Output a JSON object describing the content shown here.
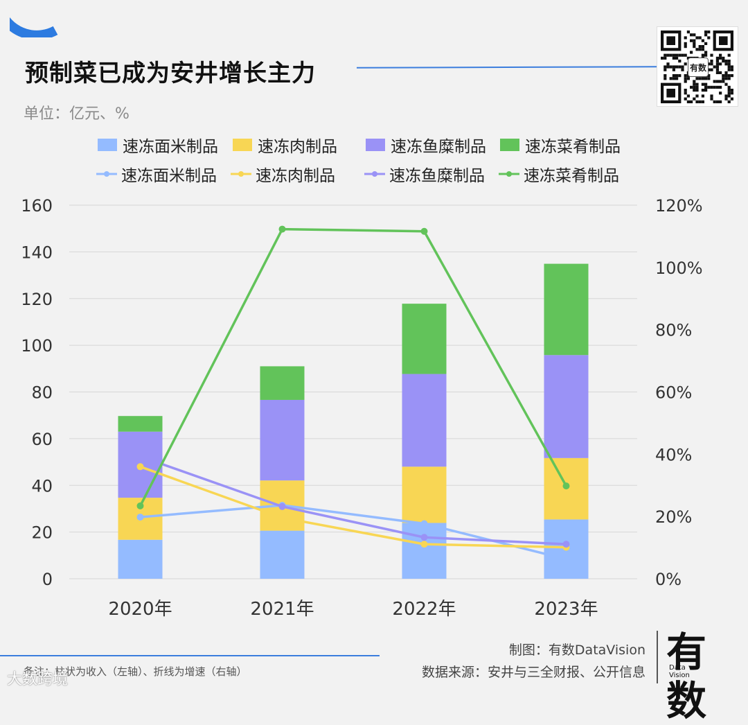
{
  "title": "预制菜已成为安井增长主力",
  "unit_label": "单位：亿元、%",
  "legend": {
    "bars": [
      "速冻面米制品",
      "速冻肉制品",
      "速冻鱼糜制品",
      "速冻菜肴制品"
    ],
    "lines": [
      "速冻面米制品",
      "速冻肉制品",
      "速冻鱼糜制品",
      "速冻菜肴制品"
    ]
  },
  "colors": {
    "mianmi": "#94bbff",
    "rou": "#f8d654",
    "yumi": "#9a92f6",
    "caiyao": "#62c35a",
    "accent": "#3b7ddd"
  },
  "chart_data": {
    "type": "bar",
    "categories": [
      "2020年",
      "2021年",
      "2022年",
      "2023年"
    ],
    "series": [
      {
        "name": "速冻面米制品",
        "type": "bar",
        "axis": "left",
        "values": [
          16.7,
          20.6,
          23.9,
          25.4
        ]
      },
      {
        "name": "速冻肉制品",
        "type": "bar",
        "axis": "left",
        "values": [
          18.0,
          21.5,
          24.1,
          26.3
        ]
      },
      {
        "name": "速冻鱼糜制品",
        "type": "bar",
        "axis": "left",
        "values": [
          28.3,
          34.5,
          39.7,
          44.1
        ]
      },
      {
        "name": "速冻菜肴制品",
        "type": "bar",
        "axis": "left",
        "values": [
          6.7,
          14.4,
          30.1,
          39.1
        ]
      },
      {
        "name": "速冻面米制品",
        "type": "line",
        "axis": "right",
        "values": [
          19.8,
          23.6,
          17.7,
          6.3
        ]
      },
      {
        "name": "速冻肉制品",
        "type": "line",
        "axis": "right",
        "values": [
          36.0,
          19.6,
          11.1,
          10.1
        ]
      },
      {
        "name": "速冻鱼糜制品",
        "type": "line",
        "axis": "right",
        "values": [
          39.3,
          23.2,
          13.3,
          11.1
        ]
      },
      {
        "name": "速冻菜肴制品",
        "type": "line",
        "axis": "right",
        "values": [
          23.4,
          112.3,
          111.6,
          29.8
        ]
      }
    ],
    "y_left": {
      "min": 0,
      "max": 160,
      "ticks": [
        "0",
        "20",
        "40",
        "60",
        "80",
        "100",
        "120",
        "140",
        "160"
      ]
    },
    "y_right": {
      "min": 0,
      "max": 120,
      "ticks": [
        "0%",
        "20%",
        "40%",
        "60%",
        "80%",
        "100%",
        "120%"
      ]
    },
    "grid": true,
    "legend_position": "top"
  },
  "footer": {
    "note": "备注：柱状为收入（左轴）、折线为增速（右轴）",
    "credit": "制图：有数DataVision",
    "source": "数据来源：安井与三全财报、公开信息",
    "brand_main": "有数",
    "brand_sub": "Data Vision",
    "qr_center": "有数",
    "watermark": "大数跨境"
  }
}
